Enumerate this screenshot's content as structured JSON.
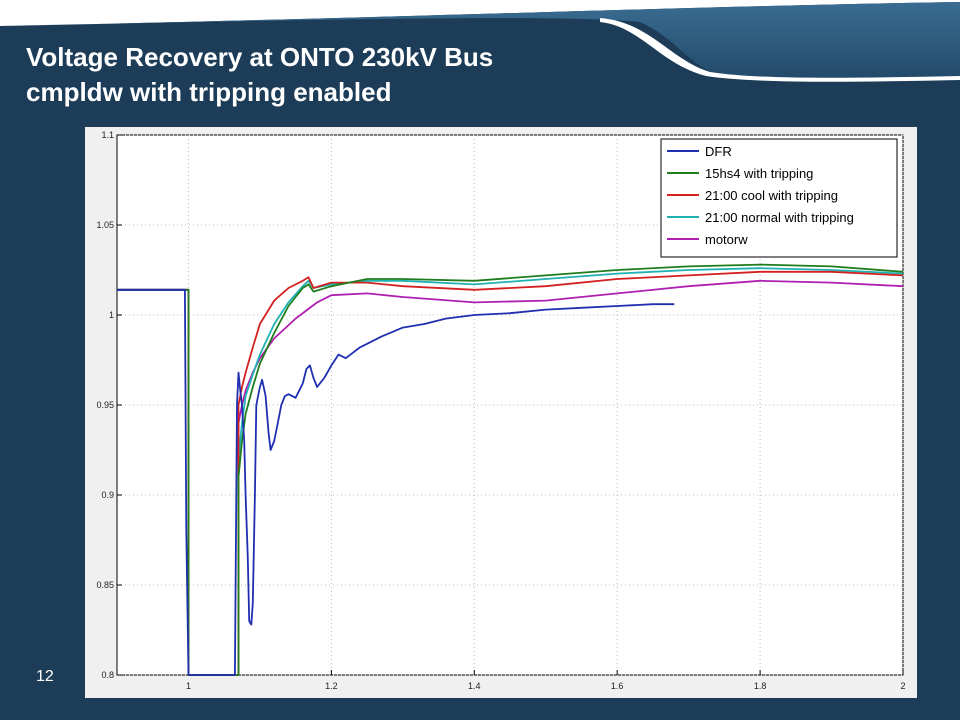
{
  "slide": {
    "title_line1": "Voltage Recovery at ONTO 230kV Bus",
    "title_line2": "cmpldw with tripping enabled",
    "page_number": "12"
  },
  "colors": {
    "background": "#1c3c57",
    "title_text": "#ffffff",
    "banner_white": "#ffffff",
    "banner_light": "#2e5f82",
    "banner_mid": "#234a6a",
    "banner_dark": "#1c3c57",
    "plot_bg": "#ffffff",
    "grid": "#b8b8b8"
  },
  "chart_data": {
    "type": "line",
    "title": "",
    "xlabel": "",
    "ylabel": "",
    "xlim": [
      0.9,
      2.0
    ],
    "ylim": [
      0.8,
      1.1
    ],
    "x_ticks": [
      "1",
      "1.2",
      "1.4",
      "1.6",
      "1.8",
      "2"
    ],
    "x_tick_values": [
      1,
      1.2,
      1.4,
      1.6,
      1.8,
      2
    ],
    "y_ticks": [
      "0.8",
      "0.85",
      "0.9",
      "0.95",
      "1",
      "1.05",
      "1.1"
    ],
    "y_tick_values": [
      0.8,
      0.85,
      0.9,
      0.95,
      1,
      1.05,
      1.1
    ],
    "grid": "dotted",
    "legend_position": "top-right",
    "series": [
      {
        "name": "DFR",
        "color": "#1f2fb0",
        "x": [
          0.9,
          0.995,
          0.997,
          1.0,
          1.005,
          1.065,
          1.068,
          1.07,
          1.072,
          1.075,
          1.078,
          1.08,
          1.083,
          1.085,
          1.088,
          1.09,
          1.093,
          1.095,
          1.1,
          1.103,
          1.108,
          1.112,
          1.115,
          1.12,
          1.125,
          1.13,
          1.135,
          1.14,
          1.15,
          1.16,
          1.165,
          1.17,
          1.175,
          1.18,
          1.19,
          1.2,
          1.21,
          1.22,
          1.23,
          1.24,
          1.25,
          1.27,
          1.3,
          1.33,
          1.36,
          1.4,
          1.45,
          1.5,
          1.55,
          1.6,
          1.65,
          1.68
        ],
        "y": [
          1.014,
          1.014,
          0.88,
          0.8,
          0.8,
          0.8,
          0.95,
          0.968,
          0.96,
          0.95,
          0.93,
          0.9,
          0.865,
          0.83,
          0.828,
          0.84,
          0.9,
          0.95,
          0.96,
          0.964,
          0.955,
          0.935,
          0.925,
          0.93,
          0.94,
          0.95,
          0.955,
          0.956,
          0.954,
          0.962,
          0.97,
          0.972,
          0.965,
          0.96,
          0.965,
          0.972,
          0.978,
          0.976,
          0.979,
          0.982,
          0.984,
          0.988,
          0.993,
          0.995,
          0.998,
          1.0,
          1.001,
          1.003,
          1.004,
          1.005,
          1.006,
          1.006
        ]
      },
      {
        "name": "15hs4 with tripping",
        "color": "#1e7d1e",
        "x": [
          0.9,
          1.0,
          1.0,
          1.07,
          1.07,
          1.075,
          1.08,
          1.09,
          1.1,
          1.12,
          1.14,
          1.16,
          1.168,
          1.175,
          1.2,
          1.25,
          1.3,
          1.4,
          1.5,
          1.6,
          1.7,
          1.8,
          1.9,
          2.0
        ],
        "y": [
          1.014,
          1.014,
          0.8,
          0.8,
          0.91,
          0.93,
          0.945,
          0.96,
          0.973,
          0.99,
          1.005,
          1.015,
          1.017,
          1.013,
          1.016,
          1.02,
          1.02,
          1.019,
          1.022,
          1.025,
          1.027,
          1.028,
          1.027,
          1.024
        ]
      },
      {
        "name": "21:00 cool with tripping",
        "color": "#d42020",
        "x": [
          0.9,
          1.0,
          1.0,
          1.07,
          1.07,
          1.075,
          1.08,
          1.09,
          1.1,
          1.12,
          1.14,
          1.16,
          1.168,
          1.175,
          1.2,
          1.25,
          1.3,
          1.4,
          1.5,
          1.6,
          1.7,
          1.8,
          1.9,
          2.0
        ],
        "y": [
          1.014,
          1.014,
          0.8,
          0.8,
          0.95,
          0.96,
          0.968,
          0.982,
          0.995,
          1.008,
          1.015,
          1.019,
          1.021,
          1.015,
          1.018,
          1.018,
          1.016,
          1.014,
          1.016,
          1.02,
          1.022,
          1.024,
          1.024,
          1.022
        ]
      },
      {
        "name": "21:00 normal with tripping",
        "color": "#20b2b2",
        "x": [
          0.9,
          1.0,
          1.0,
          1.07,
          1.07,
          1.075,
          1.08,
          1.09,
          1.1,
          1.12,
          1.14,
          1.16,
          1.168,
          1.175,
          1.2,
          1.25,
          1.3,
          1.4,
          1.5,
          1.6,
          1.7,
          1.8,
          1.9,
          2.0
        ],
        "y": [
          1.014,
          1.014,
          0.8,
          0.8,
          0.92,
          0.94,
          0.955,
          0.967,
          0.978,
          0.995,
          1.007,
          1.016,
          1.019,
          1.015,
          1.017,
          1.019,
          1.019,
          1.017,
          1.02,
          1.023,
          1.025,
          1.026,
          1.025,
          1.023
        ]
      },
      {
        "name": "motorw",
        "color": "#b020b0",
        "x": [
          0.9,
          1.0,
          1.0,
          1.07,
          1.07,
          1.075,
          1.08,
          1.09,
          1.1,
          1.12,
          1.15,
          1.18,
          1.2,
          1.25,
          1.3,
          1.4,
          1.5,
          1.6,
          1.7,
          1.8,
          1.9,
          2.0
        ],
        "y": [
          1.014,
          1.014,
          0.8,
          0.8,
          0.94,
          0.95,
          0.958,
          0.968,
          0.976,
          0.987,
          0.998,
          1.007,
          1.011,
          1.012,
          1.01,
          1.007,
          1.008,
          1.012,
          1.016,
          1.019,
          1.018,
          1.016
        ]
      }
    ]
  }
}
